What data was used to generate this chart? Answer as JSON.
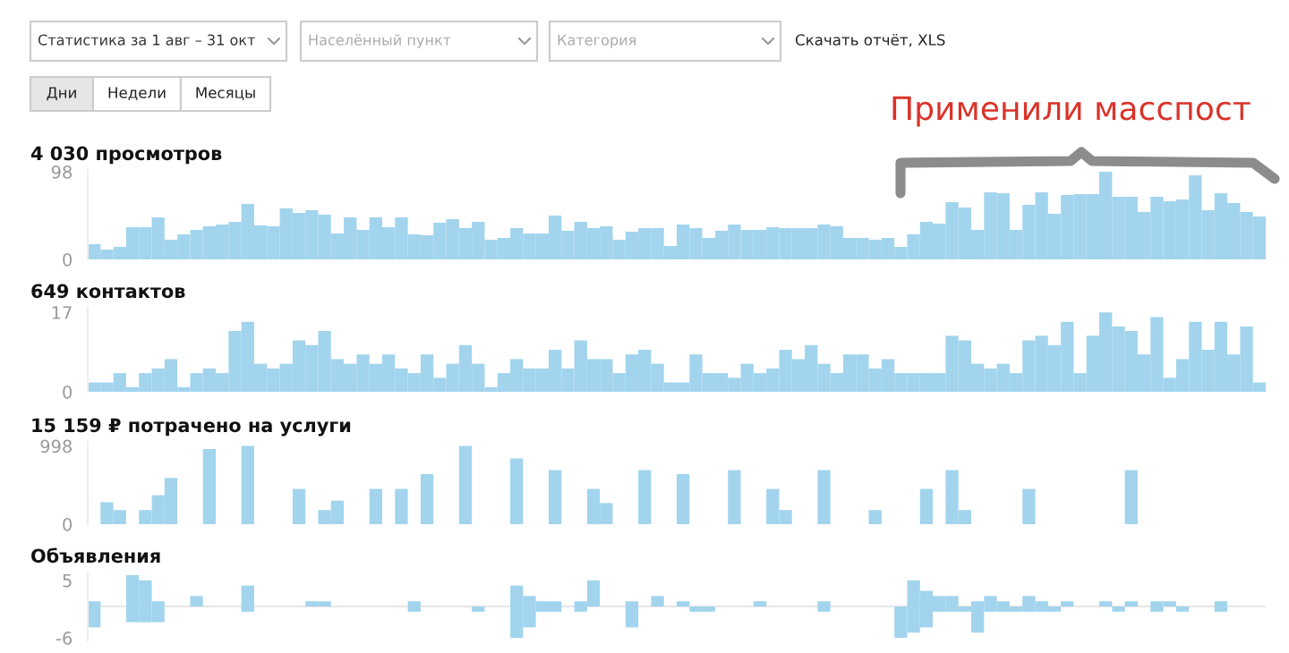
{
  "chart_data": [
    {
      "type": "other",
      "annotations": [
        "Статистика за 1 авг – 31 окт",
        "Населённый пункт",
        "Категория",
        "Скачать отчёт, XLS",
        "Дни",
        "Недели",
        "Месяцы"
      ]
    },
    {
      "type": "bar",
      "title": "4 030 просмотров",
      "annotations": [
        "Применили масспост"
      ],
      "categories": [
        null,
        null,
        null,
        null,
        null,
        null,
        null,
        null,
        null,
        null,
        null,
        null,
        null,
        null,
        null,
        null,
        null,
        null,
        null,
        null,
        null,
        null,
        null,
        null,
        null,
        null,
        null,
        null,
        null,
        null,
        null,
        null,
        null,
        null,
        null,
        null,
        null,
        null,
        null,
        null,
        null,
        null,
        null,
        null,
        null,
        null,
        null,
        null,
        null,
        null,
        null,
        null,
        null,
        null,
        null,
        null,
        null,
        null,
        null,
        null,
        null,
        null,
        null,
        null,
        null,
        null,
        null,
        null,
        null,
        null,
        null,
        null,
        null,
        null,
        null,
        null,
        null,
        null,
        null,
        null,
        null,
        null,
        null,
        null,
        null,
        null,
        null,
        null,
        null,
        null,
        null,
        null
      ],
      "color": "#96d8fa",
      "ylim": [
        0,
        100
      ],
      "yticks": [
        0,
        98
      ],
      "values": [
        17,
        11,
        14,
        36,
        36,
        47,
        22,
        28,
        33,
        37,
        39,
        42,
        62,
        38,
        37,
        57,
        52,
        55,
        50,
        29,
        47,
        33,
        47,
        36,
        47,
        28,
        27,
        41,
        45,
        35,
        42,
        22,
        24,
        35,
        29,
        29,
        49,
        32,
        42,
        35,
        37,
        22,
        31,
        35,
        35,
        15,
        39,
        35,
        24,
        32,
        39,
        33,
        33,
        36,
        35,
        35,
        35,
        39,
        37,
        24,
        24,
        22,
        24,
        14,
        28,
        42,
        40,
        64,
        58,
        33,
        75,
        74,
        33,
        61,
        75,
        51,
        72,
        73,
        73,
        98,
        70,
        70,
        53,
        70,
        65,
        67,
        94,
        55,
        74,
        63,
        53,
        48
      ]
    },
    {
      "type": "bar",
      "title": "649 контактов",
      "categories": [
        null,
        null,
        null,
        null,
        null,
        null,
        null,
        null,
        null,
        null,
        null,
        null,
        null,
        null,
        null,
        null,
        null,
        null,
        null,
        null,
        null,
        null,
        null,
        null,
        null,
        null,
        null,
        null,
        null,
        null,
        null,
        null,
        null,
        null,
        null,
        null,
        null,
        null,
        null,
        null,
        null,
        null,
        null,
        null,
        null,
        null,
        null,
        null,
        null,
        null,
        null,
        null,
        null,
        null,
        null,
        null,
        null,
        null,
        null,
        null,
        null,
        null,
        null,
        null,
        null,
        null,
        null,
        null,
        null,
        null,
        null,
        null,
        null,
        null,
        null,
        null,
        null,
        null,
        null,
        null,
        null,
        null,
        null,
        null,
        null,
        null,
        null,
        null,
        null,
        null,
        null,
        null
      ],
      "color": "#96d8fa",
      "ylim": [
        0,
        18
      ],
      "yticks": [
        0,
        17
      ],
      "values": [
        2,
        2,
        4,
        1,
        4,
        5,
        7,
        1,
        4,
        5,
        4,
        13,
        15,
        6,
        5,
        6,
        11,
        10,
        13,
        7,
        6,
        8,
        6,
        8,
        5,
        4,
        8,
        3,
        6,
        10,
        6,
        1,
        4,
        7,
        5,
        5,
        9,
        5,
        11,
        7,
        7,
        4,
        8,
        9,
        6,
        2,
        2,
        8,
        4,
        4,
        3,
        6,
        4,
        5,
        9,
        7,
        10,
        6,
        4,
        8,
        8,
        5,
        7,
        4,
        4,
        4,
        4,
        12,
        11,
        6,
        5,
        6,
        4,
        11,
        12,
        10,
        15,
        4,
        12,
        17,
        14,
        13,
        8,
        16,
        3,
        7,
        15,
        9,
        15,
        8,
        14,
        2
      ]
    },
    {
      "type": "bar",
      "title": "15 159 ₽ потрачено на услуги",
      "categories": [
        null,
        null,
        null,
        null,
        null,
        null,
        null,
        null,
        null,
        null,
        null,
        null,
        null,
        null,
        null,
        null,
        null,
        null,
        null,
        null,
        null,
        null,
        null,
        null,
        null,
        null,
        null,
        null,
        null,
        null,
        null,
        null,
        null,
        null,
        null,
        null,
        null,
        null,
        null,
        null,
        null,
        null,
        null,
        null,
        null,
        null,
        null,
        null,
        null,
        null,
        null,
        null,
        null,
        null,
        null,
        null,
        null,
        null,
        null,
        null,
        null,
        null,
        null,
        null,
        null,
        null,
        null,
        null,
        null,
        null,
        null,
        null,
        null,
        null,
        null,
        null,
        null,
        null,
        null,
        null,
        null,
        null,
        null,
        null,
        null,
        null,
        null,
        null,
        null,
        null,
        null,
        null
      ],
      "color": "#96d8fa",
      "ylim": [
        0,
        1050
      ],
      "yticks": [
        0,
        998
      ],
      "values": [
        0,
        280,
        180,
        0,
        180,
        370,
        590,
        0,
        0,
        960,
        0,
        0,
        998,
        0,
        0,
        0,
        450,
        0,
        180,
        300,
        0,
        0,
        450,
        0,
        450,
        0,
        640,
        0,
        0,
        998,
        0,
        0,
        0,
        840,
        0,
        0,
        690,
        0,
        0,
        450,
        270,
        0,
        0,
        690,
        0,
        0,
        640,
        0,
        0,
        0,
        690,
        0,
        0,
        450,
        180,
        0,
        0,
        690,
        0,
        0,
        0,
        180,
        0,
        0,
        0,
        450,
        0,
        690,
        180,
        0,
        0,
        0,
        0,
        450,
        0,
        0,
        0,
        0,
        0,
        0,
        0,
        690,
        0,
        0,
        0,
        0,
        0,
        0,
        0,
        0,
        0,
        0
      ]
    },
    {
      "type": "bar",
      "title": "Объявления",
      "categories": [
        null,
        null,
        null,
        null,
        null,
        null,
        null,
        null,
        null,
        null,
        null,
        null,
        null,
        null,
        null,
        null,
        null,
        null,
        null,
        null,
        null,
        null,
        null,
        null,
        null,
        null,
        null,
        null,
        null,
        null,
        null,
        null,
        null,
        null,
        null,
        null,
        null,
        null,
        null,
        null,
        null,
        null,
        null,
        null,
        null,
        null,
        null,
        null,
        null,
        null,
        null,
        null,
        null,
        null,
        null,
        null,
        null,
        null,
        null,
        null,
        null,
        null,
        null,
        null,
        null,
        null,
        null,
        null,
        null,
        null,
        null,
        null,
        null,
        null,
        null,
        null,
        null,
        null,
        null,
        null,
        null,
        null,
        null,
        null,
        null,
        null,
        null,
        null,
        null,
        null,
        null,
        null
      ],
      "ylim": [
        -6.5,
        6.5
      ],
      "yticks": [
        -6,
        5
      ],
      "ref_lines": [
        {
          "axis": "y",
          "value": 0,
          "color": "#e6e6e6"
        }
      ],
      "series": [
        {
          "color": "#96d8fa",
          "values": [
            1,
            0,
            0,
            6,
            5,
            1,
            0,
            0,
            2,
            0,
            0,
            0,
            4,
            0,
            0,
            0,
            0,
            1,
            1,
            0,
            0,
            0,
            0,
            0,
            0,
            1,
            0,
            0,
            0,
            0,
            0,
            0,
            0,
            4,
            2,
            1,
            1,
            0,
            1,
            5,
            0,
            0,
            1,
            0,
            2,
            0,
            1,
            0,
            0,
            0,
            0,
            0,
            1,
            0,
            0,
            0,
            0,
            1,
            0,
            0,
            0,
            0,
            0,
            0,
            5,
            3,
            2,
            2,
            0,
            1,
            2,
            1,
            0,
            2,
            1,
            0,
            1,
            0,
            0,
            1,
            0,
            1,
            0,
            1,
            1,
            0,
            0,
            0,
            1,
            0,
            0,
            0
          ]
        },
        {
          "color": "#96d8fa",
          "values": [
            -4,
            0,
            0,
            -3,
            -3,
            -3,
            0,
            0,
            0,
            0,
            0,
            0,
            -1,
            0,
            0,
            0,
            0,
            0,
            0,
            0,
            0,
            0,
            0,
            0,
            0,
            -1,
            0,
            0,
            0,
            0,
            -1,
            0,
            0,
            -6,
            -4,
            -1,
            -1,
            0,
            -1,
            0,
            0,
            0,
            -4,
            0,
            0,
            0,
            0,
            -1,
            -1,
            0,
            0,
            0,
            0,
            0,
            0,
            0,
            0,
            -1,
            0,
            0,
            0,
            0,
            0,
            -6,
            -5,
            -4,
            -1,
            -1,
            -1,
            -5,
            -1,
            -1,
            -1,
            -1,
            -1,
            -1,
            0,
            0,
            0,
            0,
            -1,
            0,
            0,
            -1,
            0,
            -1,
            0,
            0,
            -1,
            0,
            0,
            0
          ]
        }
      ]
    }
  ]
}
